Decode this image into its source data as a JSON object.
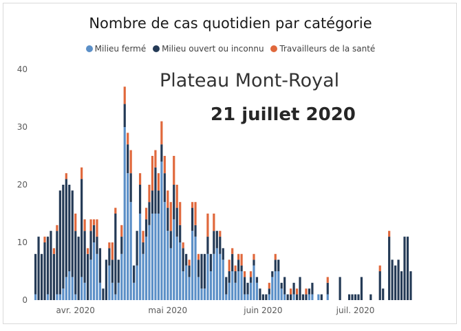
{
  "chart_data": {
    "type": "bar",
    "stacked": true,
    "title": "Nombre de cas quotidien par catégorie",
    "annotations": [
      "Plateau Mont-Royal",
      "21 juillet 2020"
    ],
    "xlabel": "",
    "ylabel": "",
    "ylim": [
      0,
      40
    ],
    "yticks": [
      0,
      10,
      20,
      30,
      40
    ],
    "xtick_labels": [
      {
        "label": "avr. 2020",
        "day": 13
      },
      {
        "label": "mai 2020",
        "day": 43
      },
      {
        "label": "juin 2020",
        "day": 74
      },
      {
        "label": "juil. 2020",
        "day": 104
      }
    ],
    "grid": false,
    "legend_position": "top",
    "colors": {
      "ferme": "#5b8fc7",
      "ouvert": "#243a56",
      "sante": "#e0683c"
    },
    "series": [
      {
        "name": "Milieu fermé",
        "values": [
          1,
          0,
          0,
          0,
          1,
          0,
          0,
          1,
          1,
          2,
          4,
          5,
          4,
          1,
          0,
          4,
          3,
          0,
          7,
          10,
          8,
          3,
          0,
          0,
          6,
          3,
          1,
          3,
          8,
          30,
          22,
          17,
          3,
          6,
          15,
          8,
          11,
          13,
          15,
          15,
          15,
          24,
          17,
          12,
          9,
          14,
          11,
          10,
          5,
          6,
          4,
          12,
          11,
          4,
          2,
          2,
          8,
          5,
          8,
          9,
          8,
          7,
          1,
          3,
          5,
          3,
          5,
          5,
          1,
          1,
          3,
          6,
          3,
          0,
          0,
          0,
          1,
          4,
          5,
          5,
          2,
          1,
          0,
          0,
          1,
          0,
          0,
          0,
          0,
          1,
          1,
          0,
          1,
          0,
          0,
          1,
          0,
          0,
          0,
          0,
          0,
          0,
          0,
          0,
          0,
          0,
          0,
          0,
          0,
          0,
          0,
          0,
          0,
          0,
          0,
          0,
          0,
          0,
          0,
          0,
          0,
          0,
          0,
          0,
          0,
          0
        ]
      },
      {
        "name": "Milieu ouvert ou inconnu",
        "values": [
          7,
          11,
          8,
          10,
          10,
          12,
          8,
          11,
          18,
          18,
          17,
          15,
          15,
          11,
          11,
          17,
          9,
          8,
          5,
          3,
          3,
          6,
          2,
          7,
          3,
          4,
          14,
          4,
          3,
          4,
          5,
          5,
          3,
          6,
          5,
          2,
          3,
          4,
          4,
          8,
          4,
          3,
          5,
          4,
          3,
          6,
          5,
          3,
          4,
          2,
          2,
          4,
          2,
          3,
          6,
          6,
          3,
          3,
          4,
          3,
          3,
          2,
          3,
          2,
          3,
          2,
          2,
          1,
          3,
          2,
          1,
          1,
          1,
          2,
          1,
          1,
          1,
          1,
          2,
          2,
          1,
          3,
          1,
          1,
          2,
          1,
          4,
          1,
          1,
          1,
          2,
          0,
          0,
          1,
          0,
          2,
          0,
          0,
          0,
          4,
          0,
          0,
          1,
          1,
          1,
          1,
          4,
          0,
          0,
          1,
          0,
          0,
          5,
          2,
          0,
          11,
          7,
          6,
          7,
          5,
          11,
          11,
          5,
          0,
          0
        ]
      },
      {
        "name": "Travailleurs de la santé",
        "values": [
          0,
          0,
          0,
          1,
          0,
          0,
          1,
          1,
          0,
          0,
          1,
          0,
          0,
          3,
          0,
          2,
          2,
          1,
          2,
          1,
          3,
          0,
          0,
          0,
          1,
          3,
          1,
          0,
          2,
          3,
          2,
          4,
          0,
          0,
          2,
          2,
          2,
          3,
          6,
          3,
          3,
          4,
          3,
          3,
          5,
          5,
          4,
          4,
          1,
          0,
          1,
          1,
          4,
          1,
          0,
          0,
          4,
          0,
          3,
          0,
          1,
          0,
          0,
          2,
          1,
          1,
          1,
          2,
          1,
          0,
          1,
          1,
          0,
          0,
          0,
          0,
          1,
          0,
          1,
          0,
          0,
          0,
          0,
          1,
          0,
          1,
          0,
          0,
          1,
          0,
          0,
          0,
          0,
          0,
          0,
          1,
          0,
          0,
          0,
          0,
          0,
          0,
          0,
          0,
          0,
          0,
          0,
          0,
          0,
          0,
          0,
          0,
          1,
          0,
          0,
          1,
          0,
          0,
          0,
          0,
          0,
          0,
          0,
          0,
          0,
          0
        ]
      }
    ]
  }
}
